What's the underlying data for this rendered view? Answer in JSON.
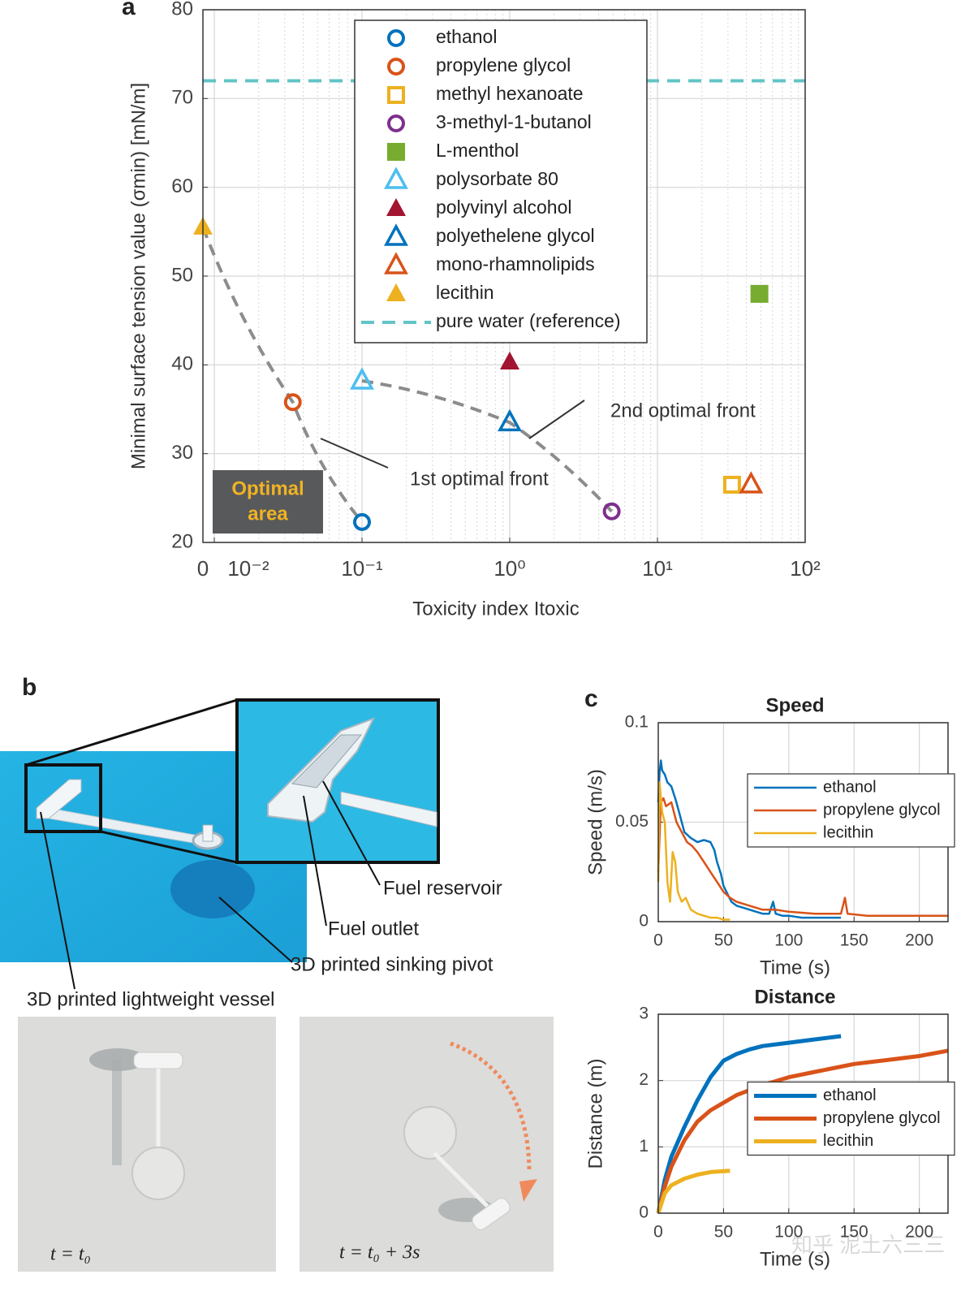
{
  "figure": {
    "panel_labels": [
      "a",
      "b",
      "c"
    ],
    "panel_b": {
      "labels": [
        "Fuel reservoir",
        "Fuel outlet",
        "3D printed sinking pivot",
        "3D printed lightweight vessel"
      ],
      "photo_captions": [
        "t = t₀",
        "t = t₀ + 3s"
      ]
    },
    "watermark": "知乎 泥土六三三"
  },
  "chart_data": [
    {
      "type": "scatter",
      "xlabel": "Toxicity index Itoxic",
      "ylabel": "Minimal surface tension value (σmin) [mN/m]",
      "xscale": "symlog",
      "linthresh": 0.01,
      "xlim": [
        0,
        100
      ],
      "xticks": [
        0,
        {
          "value": 0.01,
          "label": "10⁻²"
        },
        {
          "value": 0.1,
          "label": "10⁻¹"
        },
        {
          "value": 1,
          "label": "10⁰"
        },
        {
          "value": 10,
          "label": "10¹"
        },
        {
          "value": 100,
          "label": "10²"
        }
      ],
      "ylim": [
        20,
        80
      ],
      "yticks": [
        20,
        30,
        40,
        50,
        60,
        70,
        80
      ],
      "grid": true,
      "minor_grid": true,
      "legend": "upper center",
      "series": [
        {
          "name": "ethanol",
          "color": "#0072bd",
          "marker": "circle",
          "x": [
            0.1
          ],
          "values": [
            22.3
          ]
        },
        {
          "name": "propylene glycol",
          "color": "#d95319",
          "marker": "circle",
          "x": [
            0.034
          ],
          "values": [
            35.8
          ]
        },
        {
          "name": "methyl hexanoate",
          "color": "#edb120",
          "marker": "square",
          "x": [
            32
          ],
          "values": [
            26.5
          ]
        },
        {
          "name": "3-methyl-1-butanol",
          "color": "#7e2f8e",
          "marker": "circle",
          "x": [
            4.9
          ],
          "values": [
            23.5
          ]
        },
        {
          "name": "L-menthol",
          "color": "#77ac30",
          "marker": "filled-square",
          "x": [
            49
          ],
          "values": [
            48
          ]
        },
        {
          "name": "polysorbate 80",
          "color": "#4dbeee",
          "marker": "triangle",
          "x": [
            0.1
          ],
          "values": [
            38.2
          ]
        },
        {
          "name": "polyvinyl alcohol",
          "color": "#a2142f",
          "marker": "filled-triangle",
          "x": [
            1
          ],
          "values": [
            40.3
          ]
        },
        {
          "name": "polyethelene glycol",
          "color": "#0072bd",
          "marker": "triangle",
          "x": [
            1
          ],
          "values": [
            33.5
          ]
        },
        {
          "name": "mono-rhamnolipids",
          "color": "#d95319",
          "marker": "triangle",
          "x": [
            43
          ],
          "values": [
            26.5
          ]
        },
        {
          "name": "lecithin",
          "color": "#edb120",
          "marker": "filled-triangle",
          "x": [
            0
          ],
          "values": [
            55.5
          ]
        },
        {
          "name": "pure water (reference)",
          "color": "#62c4c6",
          "marker": "hline",
          "values": [
            72
          ]
        }
      ],
      "fronts": [
        {
          "label": "1st optimal front",
          "members": [
            "lecithin",
            "propylene glycol",
            "ethanol"
          ]
        },
        {
          "label": "2nd optimal front",
          "members": [
            "polysorbate 80",
            "polyethelene glycol",
            "3-methyl-1-butanol"
          ]
        }
      ],
      "area_box": [
        "Optimal",
        "area"
      ]
    },
    {
      "type": "line",
      "title": "Speed",
      "xlabel": "Time (s)",
      "ylabel": "Speed (m/s)",
      "xlim": [
        0,
        222
      ],
      "xticks": [
        0,
        50,
        100,
        150,
        200
      ],
      "ylim": [
        0,
        0.1
      ],
      "yticks": [
        0,
        0.05,
        0.1
      ],
      "grid": true,
      "legend": "upper right",
      "series": [
        {
          "name": "ethanol",
          "color": "#0072bd",
          "x": [
            0,
            1,
            2,
            3,
            5,
            7,
            10,
            13,
            16,
            20,
            25,
            30,
            35,
            40,
            43,
            45,
            48,
            50,
            53,
            56,
            60,
            65,
            70,
            75,
            80,
            85,
            88,
            90,
            95,
            100,
            110,
            120,
            130,
            140
          ],
          "values": [
            0.06,
            0.075,
            0.081,
            0.076,
            0.074,
            0.07,
            0.068,
            0.062,
            0.055,
            0.045,
            0.042,
            0.04,
            0.041,
            0.04,
            0.036,
            0.03,
            0.024,
            0.018,
            0.014,
            0.01,
            0.008,
            0.007,
            0.006,
            0.005,
            0.004,
            0.004,
            0.01,
            0.004,
            0.003,
            0.003,
            0.002,
            0.002,
            0.002,
            0.002
          ]
        },
        {
          "name": "propylene glycol",
          "color": "#d95319",
          "x": [
            0,
            2,
            4,
            6,
            10,
            14,
            18,
            22,
            26,
            30,
            35,
            40,
            45,
            50,
            55,
            60,
            70,
            80,
            90,
            100,
            120,
            140,
            143,
            145,
            160,
            180,
            200,
            222
          ],
          "values": [
            0.025,
            0.06,
            0.062,
            0.058,
            0.06,
            0.05,
            0.045,
            0.04,
            0.038,
            0.035,
            0.03,
            0.025,
            0.02,
            0.015,
            0.012,
            0.01,
            0.008,
            0.006,
            0.006,
            0.005,
            0.004,
            0.004,
            0.012,
            0.004,
            0.003,
            0.003,
            0.003,
            0.003
          ]
        },
        {
          "name": "lecithin",
          "color": "#edb120",
          "x": [
            0,
            1,
            3,
            5,
            7,
            9,
            11,
            13,
            15,
            18,
            21,
            25,
            30,
            35,
            40,
            45,
            50,
            55
          ],
          "values": [
            0.02,
            0.07,
            0.055,
            0.05,
            0.02,
            0.01,
            0.035,
            0.03,
            0.015,
            0.01,
            0.012,
            0.006,
            0.004,
            0.003,
            0.002,
            0.002,
            0.001,
            0.001
          ]
        }
      ]
    },
    {
      "type": "line",
      "title": "Distance",
      "xlabel": "Time (s)",
      "ylabel": "Distance (m)",
      "xlim": [
        0,
        222
      ],
      "xticks": [
        0,
        50,
        100,
        150,
        200
      ],
      "ylim": [
        0,
        3
      ],
      "yticks": [
        0,
        1,
        2,
        3
      ],
      "grid": true,
      "legend": "right",
      "series": [
        {
          "name": "ethanol",
          "color": "#0072bd",
          "x": [
            0,
            5,
            10,
            20,
            30,
            40,
            50,
            55,
            60,
            70,
            80,
            100,
            120,
            140
          ],
          "values": [
            0,
            0.5,
            0.85,
            1.3,
            1.7,
            2.05,
            2.3,
            2.35,
            2.4,
            2.47,
            2.52,
            2.57,
            2.62,
            2.67
          ]
        },
        {
          "name": "propylene glycol",
          "color": "#d95319",
          "x": [
            0,
            5,
            10,
            20,
            30,
            40,
            60,
            80,
            100,
            120,
            150,
            180,
            200,
            222
          ],
          "values": [
            0,
            0.4,
            0.7,
            1.1,
            1.38,
            1.55,
            1.78,
            1.93,
            2.05,
            2.13,
            2.25,
            2.32,
            2.37,
            2.45
          ]
        },
        {
          "name": "lecithin",
          "color": "#edb120",
          "x": [
            0,
            5,
            10,
            20,
            30,
            40,
            55
          ],
          "values": [
            0,
            0.3,
            0.42,
            0.52,
            0.58,
            0.62,
            0.64
          ]
        }
      ]
    }
  ]
}
